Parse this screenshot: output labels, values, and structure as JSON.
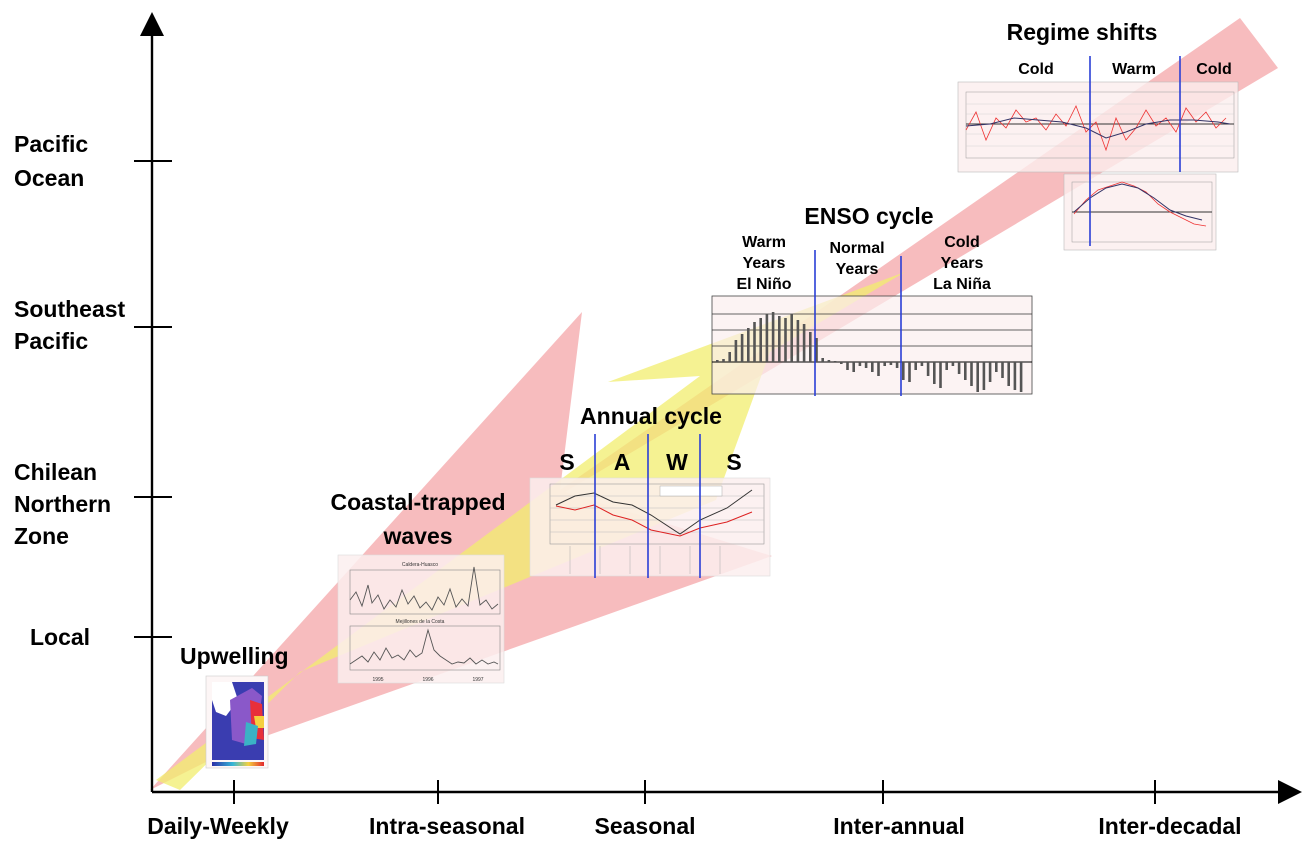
{
  "x_axis": {
    "ticks": [
      "Daily-Weekly",
      "Intra-seasonal",
      "Seasonal",
      "Inter-annual",
      "Inter-decadal"
    ]
  },
  "y_axis": {
    "ticks": [
      [
        "Local"
      ],
      [
        "Chilean",
        "Northern",
        "Zone"
      ],
      [
        "Southeast",
        "Pacific"
      ],
      [
        "Pacific",
        "Ocean"
      ]
    ]
  },
  "processes": {
    "upwelling": "Upwelling",
    "coastal_trapped_waves": [
      "Coastal-trapped",
      "waves"
    ],
    "annual_cycle": {
      "title": "Annual cycle",
      "seasons": [
        "S",
        "A",
        "W",
        "S"
      ]
    },
    "enso_cycle": {
      "title": "ENSO cycle",
      "phases": [
        [
          "Warm",
          "Years",
          "El Niño"
        ],
        [
          "Normal",
          "Years"
        ],
        [
          "Cold",
          "Years",
          "La Niña"
        ]
      ]
    },
    "regime_shifts": {
      "title": "Regime shifts",
      "phases": [
        "Cold",
        "Warm",
        "Cold"
      ]
    }
  },
  "colors": {
    "pink_arrow": "#f4a6a8",
    "yellow_arrow": "#f2ee6e",
    "phase_lines": "#2a3fd6",
    "axes": "#000000"
  },
  "thumbnails": {
    "ctw_top_title": "Caldera-Huasco",
    "ctw_bottom_title": "Mejillones de la Costa",
    "ctw_years": [
      "1995",
      "1996",
      "1997"
    ]
  }
}
